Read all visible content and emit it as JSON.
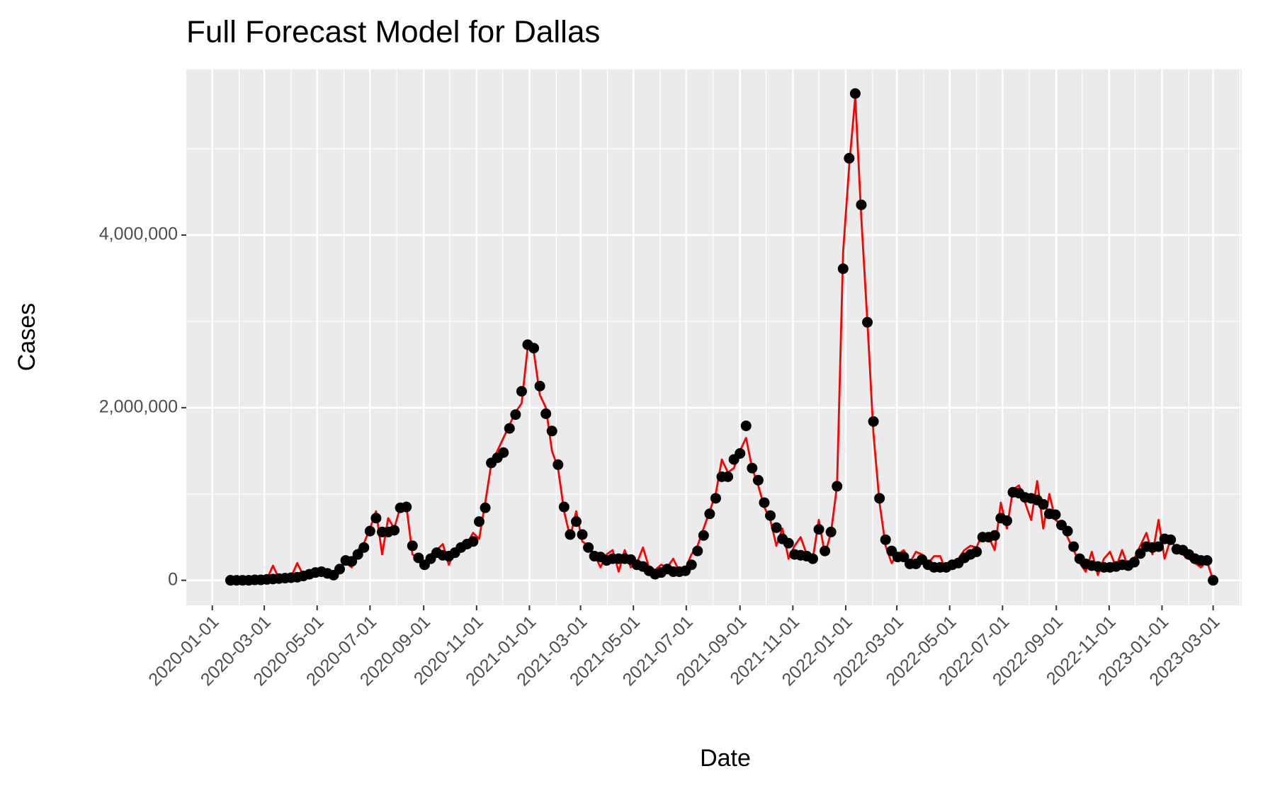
{
  "chart_data": {
    "type": "line",
    "title": "Full Forecast Model for Dallas",
    "xlabel": "Date",
    "ylabel": "Cases",
    "x": [
      "2020-01-22",
      "2020-01-29",
      "2020-02-05",
      "2020-02-12",
      "2020-02-19",
      "2020-02-26",
      "2020-03-04",
      "2020-03-11",
      "2020-03-18",
      "2020-03-25",
      "2020-04-01",
      "2020-04-08",
      "2020-04-15",
      "2020-04-22",
      "2020-04-29",
      "2020-05-06",
      "2020-05-13",
      "2020-05-20",
      "2020-05-27",
      "2020-06-03",
      "2020-06-10",
      "2020-06-17",
      "2020-06-24",
      "2020-07-01",
      "2020-07-08",
      "2020-07-15",
      "2020-07-22",
      "2020-07-29",
      "2020-08-05",
      "2020-08-12",
      "2020-08-19",
      "2020-08-26",
      "2020-09-02",
      "2020-09-09",
      "2020-09-16",
      "2020-09-23",
      "2020-09-30",
      "2020-10-07",
      "2020-10-14",
      "2020-10-21",
      "2020-10-28",
      "2020-11-04",
      "2020-11-11",
      "2020-11-18",
      "2020-11-25",
      "2020-12-02",
      "2020-12-09",
      "2020-12-16",
      "2020-12-23",
      "2020-12-30",
      "2021-01-06",
      "2021-01-13",
      "2021-01-20",
      "2021-01-27",
      "2021-02-03",
      "2021-02-10",
      "2021-02-17",
      "2021-02-24",
      "2021-03-03",
      "2021-03-10",
      "2021-03-17",
      "2021-03-24",
      "2021-03-31",
      "2021-04-07",
      "2021-04-14",
      "2021-04-21",
      "2021-04-28",
      "2021-05-05",
      "2021-05-12",
      "2021-05-19",
      "2021-05-26",
      "2021-06-02",
      "2021-06-09",
      "2021-06-16",
      "2021-06-23",
      "2021-06-30",
      "2021-07-07",
      "2021-07-14",
      "2021-07-21",
      "2021-07-28",
      "2021-08-04",
      "2021-08-11",
      "2021-08-18",
      "2021-08-25",
      "2021-09-01",
      "2021-09-08",
      "2021-09-15",
      "2021-09-22",
      "2021-09-29",
      "2021-10-06",
      "2021-10-13",
      "2021-10-20",
      "2021-10-27",
      "2021-11-03",
      "2021-11-10",
      "2021-11-17",
      "2021-11-24",
      "2021-12-01",
      "2021-12-08",
      "2021-12-15",
      "2021-12-22",
      "2021-12-29",
      "2022-01-05",
      "2022-01-12",
      "2022-01-19",
      "2022-01-26",
      "2022-02-02",
      "2022-02-09",
      "2022-02-16",
      "2022-02-23",
      "2022-03-02",
      "2022-03-09",
      "2022-03-16",
      "2022-03-23",
      "2022-03-30",
      "2022-04-06",
      "2022-04-13",
      "2022-04-20",
      "2022-04-27",
      "2022-05-04",
      "2022-05-11",
      "2022-05-18",
      "2022-05-25",
      "2022-06-01",
      "2022-06-08",
      "2022-06-15",
      "2022-06-22",
      "2022-06-29",
      "2022-07-06",
      "2022-07-13",
      "2022-07-20",
      "2022-07-27",
      "2022-08-03",
      "2022-08-10",
      "2022-08-17",
      "2022-08-24",
      "2022-08-31",
      "2022-09-07",
      "2022-09-14",
      "2022-09-21",
      "2022-09-28",
      "2022-10-05",
      "2022-10-12",
      "2022-10-19",
      "2022-10-26",
      "2022-11-02",
      "2022-11-09",
      "2022-11-16",
      "2022-11-23",
      "2022-11-30",
      "2022-12-07",
      "2022-12-14",
      "2022-12-21",
      "2022-12-28",
      "2023-01-04",
      "2023-01-11",
      "2023-01-18",
      "2023-01-25",
      "2023-02-01",
      "2023-02-08",
      "2023-02-15",
      "2023-02-22",
      "2023-03-01"
    ],
    "series": [
      {
        "mark": "line",
        "color": "#ff0000",
        "values": [
          0,
          0,
          0,
          0,
          5000,
          5000,
          10000,
          170000,
          20000,
          30000,
          40000,
          200000,
          60000,
          70000,
          90000,
          100000,
          90000,
          60000,
          150000,
          200000,
          150000,
          350000,
          430000,
          600000,
          800000,
          300000,
          720000,
          600000,
          850000,
          860000,
          300000,
          250000,
          200000,
          300000,
          350000,
          420000,
          180000,
          350000,
          400000,
          420000,
          550000,
          480000,
          900000,
          1350000,
          1500000,
          1650000,
          1800000,
          1950000,
          2050000,
          2700000,
          2650000,
          2150000,
          2000000,
          1500000,
          1300000,
          800000,
          500000,
          800000,
          450000,
          400000,
          300000,
          150000,
          300000,
          350000,
          100000,
          350000,
          150000,
          200000,
          380000,
          150000,
          120000,
          180000,
          150000,
          250000,
          100000,
          130000,
          300000,
          400000,
          600000,
          800000,
          1000000,
          1400000,
          1250000,
          1300000,
          1500000,
          1650000,
          1300000,
          1100000,
          850000,
          700000,
          400000,
          600000,
          250000,
          400000,
          500000,
          300000,
          250000,
          700000,
          300000,
          550000,
          1100000,
          3800000,
          4800000,
          5600000,
          4200000,
          3000000,
          1700000,
          900000,
          400000,
          200000,
          300000,
          350000,
          200000,
          330000,
          300000,
          200000,
          280000,
          280000,
          100000,
          200000,
          250000,
          350000,
          400000,
          380000,
          550000,
          500000,
          350000,
          900000,
          600000,
          1050000,
          1100000,
          900000,
          700000,
          1150000,
          600000,
          1000000,
          700000,
          650000,
          500000,
          350000,
          200000,
          100000,
          330000,
          60000,
          250000,
          330000,
          150000,
          350000,
          150000,
          250000,
          400000,
          550000,
          300000,
          700000,
          250000,
          480000,
          350000,
          300000,
          250000,
          200000,
          150000,
          220000,
          0
        ]
      },
      {
        "mark": "point",
        "color": "#000000",
        "values": [
          0,
          0,
          0,
          0,
          5000,
          5000,
          10000,
          15000,
          20000,
          25000,
          30000,
          35000,
          50000,
          70000,
          90000,
          100000,
          80000,
          60000,
          130000,
          230000,
          220000,
          300000,
          380000,
          570000,
          720000,
          560000,
          560000,
          580000,
          840000,
          850000,
          400000,
          260000,
          180000,
          250000,
          320000,
          290000,
          280000,
          320000,
          380000,
          420000,
          450000,
          680000,
          840000,
          1360000,
          1420000,
          1480000,
          1760000,
          1920000,
          2190000,
          2730000,
          2690000,
          2250000,
          1930000,
          1730000,
          1340000,
          850000,
          530000,
          680000,
          530000,
          380000,
          280000,
          270000,
          230000,
          250000,
          250000,
          250000,
          240000,
          180000,
          160000,
          110000,
          70000,
          90000,
          130000,
          100000,
          100000,
          110000,
          180000,
          340000,
          520000,
          770000,
          950000,
          1200000,
          1200000,
          1400000,
          1470000,
          1790000,
          1300000,
          1160000,
          900000,
          750000,
          610000,
          480000,
          430000,
          300000,
          290000,
          280000,
          250000,
          590000,
          340000,
          560000,
          1090000,
          3610000,
          4890000,
          5640000,
          4350000,
          2990000,
          1840000,
          950000,
          470000,
          340000,
          270000,
          270000,
          190000,
          190000,
          240000,
          180000,
          150000,
          150000,
          150000,
          180000,
          200000,
          260000,
          300000,
          330000,
          500000,
          500000,
          520000,
          720000,
          690000,
          1020000,
          1010000,
          960000,
          950000,
          930000,
          880000,
          770000,
          760000,
          640000,
          570000,
          390000,
          250000,
          190000,
          170000,
          160000,
          150000,
          150000,
          160000,
          180000,
          170000,
          210000,
          310000,
          390000,
          380000,
          390000,
          480000,
          470000,
          360000,
          350000,
          300000,
          250000,
          230000,
          230000,
          0
        ]
      }
    ],
    "xlim": [
      "2019-12-02",
      "2023-04-03"
    ],
    "xticks": [
      "2020-01-01",
      "2020-03-01",
      "2020-05-01",
      "2020-07-01",
      "2020-09-01",
      "2020-11-01",
      "2021-01-01",
      "2021-03-01",
      "2021-05-01",
      "2021-07-01",
      "2021-09-01",
      "2021-11-01",
      "2022-01-01",
      "2022-03-01",
      "2022-05-01",
      "2022-07-01",
      "2022-09-01",
      "2022-11-01",
      "2023-01-01",
      "2023-03-01"
    ],
    "xminor_ticks": [
      "2020-02-01",
      "2020-04-01",
      "2020-06-01",
      "2020-08-01",
      "2020-10-01",
      "2020-12-01",
      "2021-02-01",
      "2021-04-01",
      "2021-06-01",
      "2021-08-01",
      "2021-10-01",
      "2021-12-01",
      "2022-02-01",
      "2022-04-01",
      "2022-06-01",
      "2022-08-01",
      "2022-10-01",
      "2022-12-01",
      "2023-02-01",
      "2023-04-01"
    ],
    "ylim": [
      -290000,
      5920000
    ],
    "yticks": [
      0,
      {
        "value": 2000000,
        "label": "2,000,000"
      },
      {
        "value": 4000000,
        "label": "4,000,000"
      }
    ],
    "yminor_ticks": [
      1000000,
      3000000,
      5000000
    ],
    "grid": true
  }
}
